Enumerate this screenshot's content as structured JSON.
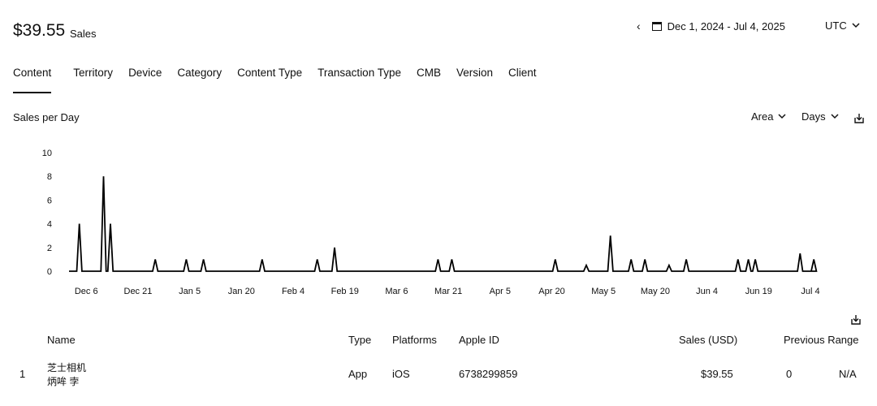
{
  "header": {
    "total_amount": "$39.55",
    "total_label": "Sales",
    "prev_icon": "chevron-left-icon",
    "calendar_icon": "calendar-icon",
    "date_range": "Dec 1, 2024 - Jul 4, 2025",
    "timezone": "UTC",
    "timezone_icon": "chevron-down-icon"
  },
  "tabs": [
    {
      "label": "Content",
      "active": true
    },
    {
      "label": "Territory"
    },
    {
      "label": "Device"
    },
    {
      "label": "Category"
    },
    {
      "label": "Content Type"
    },
    {
      "label": "Transaction Type"
    },
    {
      "label": "CMB"
    },
    {
      "label": "Version"
    },
    {
      "label": "Client"
    }
  ],
  "chart_section": {
    "title": "Sales per Day",
    "chart_type_select": "Area",
    "granularity_select": "Days",
    "download_icon": "download-icon"
  },
  "chart_data": {
    "type": "line",
    "title": "Sales per Day",
    "xlabel": "",
    "ylabel": "",
    "ylim": [
      0,
      10
    ],
    "yticks": [
      0,
      2,
      4,
      6,
      8,
      10
    ],
    "xlim": [
      "2024-12-01",
      "2025-07-04"
    ],
    "xticks": [
      "Dec 6",
      "Dec 21",
      "Jan 5",
      "Jan 20",
      "Feb 4",
      "Feb 19",
      "Mar 6",
      "Mar 21",
      "Apr 5",
      "Apr 20",
      "May 5",
      "May 20",
      "Jun 4",
      "Jun 19",
      "Jul 4"
    ],
    "grid": false,
    "legend": "none",
    "color": "#000000",
    "series": [
      {
        "points": [
          {
            "date": "2024-12-04",
            "value": 4
          },
          {
            "date": "2024-12-11",
            "value": 8
          },
          {
            "date": "2024-12-13",
            "value": 4
          },
          {
            "date": "2024-12-26",
            "value": 1
          },
          {
            "date": "2025-01-04",
            "value": 1
          },
          {
            "date": "2025-01-09",
            "value": 1
          },
          {
            "date": "2025-01-26",
            "value": 1
          },
          {
            "date": "2025-02-11",
            "value": 1
          },
          {
            "date": "2025-02-16",
            "value": 2
          },
          {
            "date": "2025-03-18",
            "value": 1
          },
          {
            "date": "2025-03-22",
            "value": 1
          },
          {
            "date": "2025-04-21",
            "value": 1
          },
          {
            "date": "2025-04-30",
            "value": 0.5
          },
          {
            "date": "2025-05-07",
            "value": 3
          },
          {
            "date": "2025-05-13",
            "value": 1
          },
          {
            "date": "2025-05-17",
            "value": 1
          },
          {
            "date": "2025-05-24",
            "value": 0.5
          },
          {
            "date": "2025-05-29",
            "value": 1
          },
          {
            "date": "2025-06-13",
            "value": 1
          },
          {
            "date": "2025-06-16",
            "value": 1
          },
          {
            "date": "2025-06-18",
            "value": 1
          },
          {
            "date": "2025-07-01",
            "value": 1.5
          },
          {
            "date": "2025-07-05",
            "value": 1
          }
        ]
      }
    ]
  },
  "table": {
    "download_icon": "download-icon",
    "columns": {
      "name": "Name",
      "type": "Type",
      "platforms": "Platforms",
      "apple_id": "Apple ID",
      "sales": "Sales (USD)",
      "previous": "Previous Range"
    },
    "rows": [
      {
        "index": "1",
        "name_line1": "芝士相机",
        "name_line2": "炳哞 孛",
        "type": "App",
        "platforms": "iOS",
        "apple_id": "6738299859",
        "sales": "$39.55",
        "previous": "0",
        "change": "N/A"
      }
    ]
  }
}
